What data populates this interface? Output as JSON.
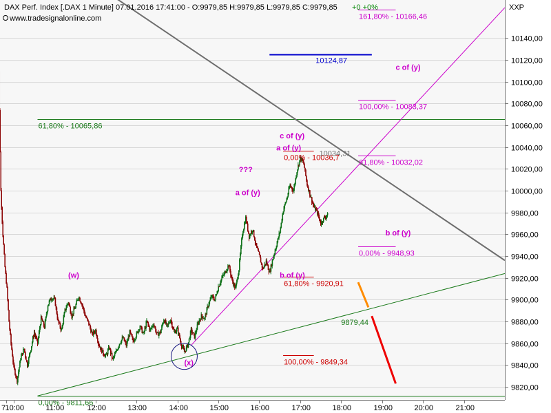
{
  "header": {
    "title": "DAX Perf. Index [.DAX  1 Minute] 07.01.2016 17:41:00 - O:9979,85 H:9979,85 L:9979,85 C:9979,85",
    "change": "+0  +0%",
    "source": "www.tradesignalonline.com",
    "axis_symbol": "XXP"
  },
  "colors": {
    "up_candle": "#0a6e14",
    "down_candle": "#8b0000",
    "fib_green": "#1b7a1b",
    "fib_red": "#cc0000",
    "fib_magenta": "#cc00cc",
    "blue_level": "#0000cc",
    "trend_gray": "#6e6e6e",
    "trend_magenta": "#cc00cc",
    "trend_green": "#1b7a1b",
    "arrow_orange": "#ff8c00",
    "arrow_red": "#ee0000"
  },
  "chart_data": {
    "type": "candlestick",
    "interval": "1 Minute",
    "xlim": [
      "09:40",
      "22:00"
    ],
    "ylim": [
      9808,
      10175
    ],
    "x_ticks": [
      "10:00",
      "11:00",
      "12:00",
      "13:00",
      "14:00",
      "15:00",
      "16:00",
      "17:00",
      "18:00",
      "19:00",
      "20:00",
      "21:00"
    ],
    "first_tick_fragment": "7",
    "y_ticks": [
      "9820,00",
      "9840,00",
      "9860,00",
      "9880,00",
      "9900,00",
      "9920,00",
      "9940,00",
      "9960,00",
      "9980,00",
      "10000,00",
      "10020,00",
      "10040,00",
      "10060,00",
      "10080,00",
      "10100,00",
      "10120,00",
      "10140,00"
    ],
    "y_tick_values": [
      9820,
      9840,
      9860,
      9880,
      9900,
      9920,
      9940,
      9960,
      9980,
      10000,
      10020,
      10040,
      10060,
      10080,
      10100,
      10120,
      10140
    ],
    "price_path": [
      [
        "09:35",
        10165
      ],
      [
        "09:38",
        10110
      ],
      [
        "09:41",
        10000
      ],
      [
        "09:44",
        9960
      ],
      [
        "09:47",
        9930
      ],
      [
        "09:50",
        9910
      ],
      [
        "09:53",
        9880
      ],
      [
        "09:56",
        9860
      ],
      [
        "10:00",
        9838
      ],
      [
        "10:05",
        9826
      ],
      [
        "10:10",
        9846
      ],
      [
        "10:15",
        9855
      ],
      [
        "10:20",
        9840
      ],
      [
        "10:25",
        9855
      ],
      [
        "10:30",
        9870
      ],
      [
        "10:35",
        9860
      ],
      [
        "10:40",
        9883
      ],
      [
        "10:45",
        9875
      ],
      [
        "10:50",
        9895
      ],
      [
        "10:55",
        9902
      ],
      [
        "11:00",
        9900
      ],
      [
        "11:05",
        9880
      ],
      [
        "11:10",
        9872
      ],
      [
        "11:15",
        9890
      ],
      [
        "11:20",
        9898
      ],
      [
        "11:25",
        9885
      ],
      [
        "11:30",
        9893
      ],
      [
        "11:35",
        9903
      ],
      [
        "11:40",
        9896
      ],
      [
        "11:45",
        9885
      ],
      [
        "11:50",
        9878
      ],
      [
        "11:55",
        9868
      ],
      [
        "12:00",
        9872
      ],
      [
        "12:05",
        9858
      ],
      [
        "12:10",
        9852
      ],
      [
        "12:15",
        9848
      ],
      [
        "12:20",
        9856
      ],
      [
        "12:25",
        9845
      ],
      [
        "12:30",
        9852
      ],
      [
        "12:35",
        9860
      ],
      [
        "12:40",
        9865
      ],
      [
        "12:45",
        9858
      ],
      [
        "12:50",
        9870
      ],
      [
        "12:55",
        9862
      ],
      [
        "13:00",
        9868
      ],
      [
        "13:05",
        9876
      ],
      [
        "13:10",
        9868
      ],
      [
        "13:15",
        9880
      ],
      [
        "13:20",
        9872
      ],
      [
        "13:25",
        9878
      ],
      [
        "13:30",
        9868
      ],
      [
        "13:35",
        9870
      ],
      [
        "13:40",
        9882
      ],
      [
        "13:45",
        9875
      ],
      [
        "13:50",
        9882
      ],
      [
        "13:55",
        9870
      ],
      [
        "14:00",
        9873
      ],
      [
        "14:05",
        9860
      ],
      [
        "14:10",
        9852
      ],
      [
        "14:15",
        9858
      ],
      [
        "14:20",
        9872
      ],
      [
        "14:25",
        9866
      ],
      [
        "14:30",
        9878
      ],
      [
        "14:35",
        9885
      ],
      [
        "14:40",
        9883
      ],
      [
        "14:45",
        9895
      ],
      [
        "14:50",
        9903
      ],
      [
        "14:55",
        9900
      ],
      [
        "15:00",
        9912
      ],
      [
        "15:05",
        9920
      ],
      [
        "15:10",
        9925
      ],
      [
        "15:15",
        9932
      ],
      [
        "15:20",
        9918
      ],
      [
        "15:25",
        9910
      ],
      [
        "15:30",
        9928
      ],
      [
        "15:35",
        9960
      ],
      [
        "15:40",
        9975
      ],
      [
        "15:45",
        9958
      ],
      [
        "15:50",
        9965
      ],
      [
        "15:55",
        9950
      ],
      [
        "16:00",
        9940
      ],
      [
        "16:05",
        9928
      ],
      [
        "16:10",
        9935
      ],
      [
        "16:15",
        9925
      ],
      [
        "16:20",
        9938
      ],
      [
        "16:25",
        9950
      ],
      [
        "16:30",
        9962
      ],
      [
        "16:35",
        9982
      ],
      [
        "16:40",
        9992
      ],
      [
        "16:45",
        10005
      ],
      [
        "16:50",
        10000
      ],
      [
        "16:55",
        10018
      ],
      [
        "17:00",
        10030
      ],
      [
        "17:05",
        10025
      ],
      [
        "17:10",
        10006
      ],
      [
        "17:15",
        9995
      ],
      [
        "17:20",
        9985
      ],
      [
        "17:25",
        9980
      ],
      [
        "17:30",
        9970
      ],
      [
        "17:35",
        9975
      ],
      [
        "17:40",
        9978
      ],
      [
        "17:41",
        9979.85
      ]
    ],
    "horizontal_levels": [
      {
        "label": "61,80% - 10065,86",
        "value": 10065.86,
        "color": "fib_green",
        "from": "10:35",
        "to": "22:00"
      },
      {
        "label": "0,00% - 9811,66",
        "value": 9811.66,
        "color": "fib_green",
        "from": "10:35",
        "to": "22:00"
      },
      {
        "label": "10124,87",
        "value": 10124.87,
        "color": "blue_level",
        "from": "16:15",
        "to": "18:45"
      },
      {
        "label": "161,80% - 10166,46",
        "value": 10166.46,
        "color": "fib_magenta",
        "from": "18:25",
        "to": "19:20"
      },
      {
        "label": "100,00% - 10083,37",
        "value": 10083.37,
        "color": "fib_magenta",
        "from": "18:25",
        "to": "19:20"
      },
      {
        "label": "61,80% - 10032,02",
        "value": 10032.02,
        "color": "fib_magenta",
        "from": "18:25",
        "to": "19:20"
      },
      {
        "label": "0,00% - 9948,93",
        "value": 9948.93,
        "color": "fib_magenta",
        "from": "18:25",
        "to": "19:20"
      },
      {
        "label": "0,00% - 10036,7",
        "value": 10036.7,
        "color": "fib_red",
        "from": "16:35",
        "to": "17:20"
      },
      {
        "label": "61,80% - 9920,91",
        "value": 9920.91,
        "color": "fib_red",
        "from": "16:35",
        "to": "17:20"
      },
      {
        "label": "100,00% - 9849,34",
        "value": 9849.34,
        "color": "fib_red",
        "from": "16:35",
        "to": "17:20"
      }
    ],
    "price_labels": [
      {
        "text": "10034,31",
        "time": "17:28",
        "value": 10034.31,
        "color": "trend_gray"
      },
      {
        "text": "9879,44",
        "time": "18:00",
        "value": 9879.44,
        "color": "fib_green"
      }
    ],
    "trend_lines": [
      {
        "name": "gray-resistance",
        "color": "trend_gray",
        "points": [
          [
            "12:10",
            10185
          ],
          [
            "22:00",
            9936
          ]
        ]
      },
      {
        "name": "magenta-support",
        "color": "trend_magenta",
        "points": [
          [
            "14:20",
            9858
          ],
          [
            "22:00",
            10168
          ]
        ]
      },
      {
        "name": "green-support",
        "color": "trend_green",
        "points": [
          [
            "10:35",
            9811.66
          ],
          [
            "22:00",
            9924
          ]
        ]
      }
    ],
    "arrows": [
      {
        "name": "orange-arrow",
        "color": "arrow_orange",
        "points": [
          [
            "18:25",
            9916
          ],
          [
            "18:40",
            9893
          ]
        ]
      },
      {
        "name": "red-arrow",
        "color": "arrow_red",
        "points": [
          [
            "18:45",
            9885
          ],
          [
            "19:20",
            9823
          ]
        ]
      }
    ],
    "wave_labels": [
      {
        "text": "(w)",
        "time": "11:20",
        "value": 9920
      },
      {
        "text": "a of (y)",
        "time": "15:25",
        "value": 9996
      },
      {
        "text": "???",
        "time": "15:30",
        "value": 10017
      },
      {
        "text": "a of (y)",
        "time": "16:25",
        "value": 10037
      },
      {
        "text": "c of (y)",
        "time": "16:30",
        "value": 10048
      },
      {
        "text": "b of (y)",
        "time": "16:30",
        "value": 9920
      },
      {
        "text": "(x)",
        "time": "14:10",
        "value": 9840
      },
      {
        "text": "c of (y)",
        "time": "19:20",
        "value": 10111
      },
      {
        "text": "b of (y)",
        "time": "19:05",
        "value": 9959
      }
    ],
    "circle_marker": {
      "time": "14:10",
      "value": 9848
    }
  }
}
